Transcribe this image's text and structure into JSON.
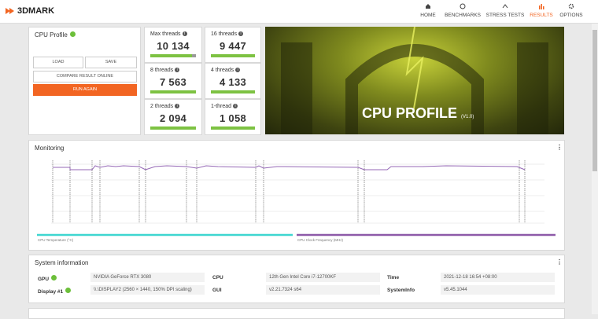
{
  "nav": {
    "logo": "3DMARK",
    "items": [
      "HOME",
      "BENCHMARKS",
      "STRESS TESTS",
      "RESULTS",
      "OPTIONS"
    ]
  },
  "profile": {
    "title": "CPU Profile",
    "buttons": [
      "LOAD",
      "SAVE",
      "COMPARE RESULT ONLINE",
      "RUN AGAIN"
    ]
  },
  "scores": [
    {
      "label": "Max threads",
      "value": "10 134"
    },
    {
      "label": "16 threads",
      "value": "9 447"
    },
    {
      "label": "8 threads",
      "value": "7 563"
    },
    {
      "label": "4 threads",
      "value": "4 133"
    },
    {
      "label": "2 threads",
      "value": "2 094"
    },
    {
      "label": "1-thread",
      "value": "1 058"
    }
  ],
  "banner": {
    "title": "CPU PROFILE",
    "version": "(V1.0)"
  },
  "monitoring": {
    "title": "Monitoring",
    "legend": [
      "CPU Temperature (°C)",
      "CPU Clock Frequency (MHz)"
    ]
  },
  "system_info": {
    "title": "System information",
    "rows": [
      [
        "GPU",
        "NVIDIA GeForce RTX 3080",
        "CPU",
        "12th Gen Intel Core i7-12700KF",
        "Time",
        "2021-12-18 16:54 +08:00"
      ],
      [
        "Display #1",
        "\\\\.\\DISPLAY2 (2560 × 1440, 150% DPI scaling)",
        "GUI",
        "v2.21.7324 s64",
        "SystemInfo",
        "v5.45.1044"
      ]
    ]
  }
}
